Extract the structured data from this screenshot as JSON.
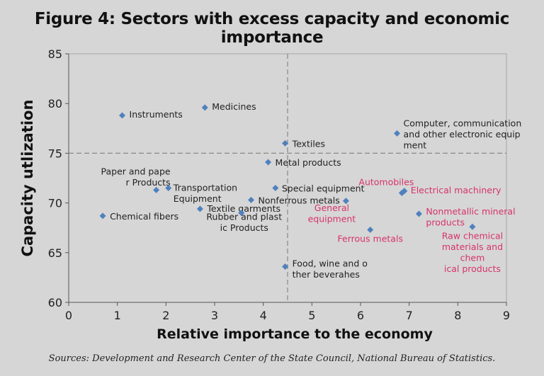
{
  "title": "Figure 4: Sectors with excess capacity and economic importance",
  "source": "Sources: Development and Research Center of the State Council, National Bureau of Statistics.",
  "colors": {
    "point": "#4f81bd",
    "highlight": "#d6336c",
    "text": "#222222",
    "grid": "#888888"
  },
  "chart_data": {
    "type": "scatter",
    "xlabel": "Relative importance to the economy",
    "ylabel": "Capacity utlization",
    "xlim": [
      0,
      9
    ],
    "ylim": [
      60,
      85
    ],
    "xticks": [
      0,
      1,
      2,
      3,
      4,
      5,
      6,
      7,
      8,
      9
    ],
    "yticks": [
      60,
      65,
      70,
      75,
      80,
      85
    ],
    "reference_lines": {
      "x": 4.5,
      "y": 75
    },
    "points": [
      {
        "label": "Instruments",
        "x": 1.1,
        "y": 78.8,
        "highlight": false
      },
      {
        "label": "Medicines",
        "x": 2.8,
        "y": 79.6,
        "highlight": false
      },
      {
        "label": "Computer, communication and other electronic equipment",
        "x": 6.75,
        "y": 77.0,
        "highlight": false
      },
      {
        "label": "Textiles",
        "x": 4.45,
        "y": 76.0,
        "highlight": false
      },
      {
        "label": "Metal products",
        "x": 4.1,
        "y": 74.1,
        "highlight": false
      },
      {
        "label": "Paper and paper Products",
        "x": 1.8,
        "y": 71.3,
        "highlight": false
      },
      {
        "label": "Transportation Equipment",
        "x": 2.05,
        "y": 71.5,
        "highlight": false
      },
      {
        "label": "Special equipment",
        "x": 4.25,
        "y": 71.5,
        "highlight": false
      },
      {
        "label": "Nonferrous metals",
        "x": 3.75,
        "y": 70.3,
        "highlight": false
      },
      {
        "label": "Chemical fibers",
        "x": 0.7,
        "y": 68.7,
        "highlight": false
      },
      {
        "label": "Textile garments",
        "x": 2.7,
        "y": 69.4,
        "highlight": false
      },
      {
        "label": "Rubber and plastic Products",
        "x": 3.55,
        "y": 69.0,
        "highlight": false
      },
      {
        "label": "Food, wine and other beverahes",
        "x": 4.45,
        "y": 63.6,
        "highlight": false
      },
      {
        "label": "Automobiles",
        "x": 6.85,
        "y": 71.0,
        "highlight": true
      },
      {
        "label": "Electrical machinery",
        "x": 6.9,
        "y": 71.2,
        "highlight": true
      },
      {
        "label": "General equipment",
        "x": 5.7,
        "y": 70.2,
        "highlight": true
      },
      {
        "label": "Ferrous metals",
        "x": 6.2,
        "y": 67.3,
        "highlight": true
      },
      {
        "label": "Nonmetallic mineral products",
        "x": 7.2,
        "y": 68.9,
        "highlight": true
      },
      {
        "label": "Raw chemical materials and chemical products",
        "x": 8.3,
        "y": 67.6,
        "highlight": true
      }
    ]
  }
}
